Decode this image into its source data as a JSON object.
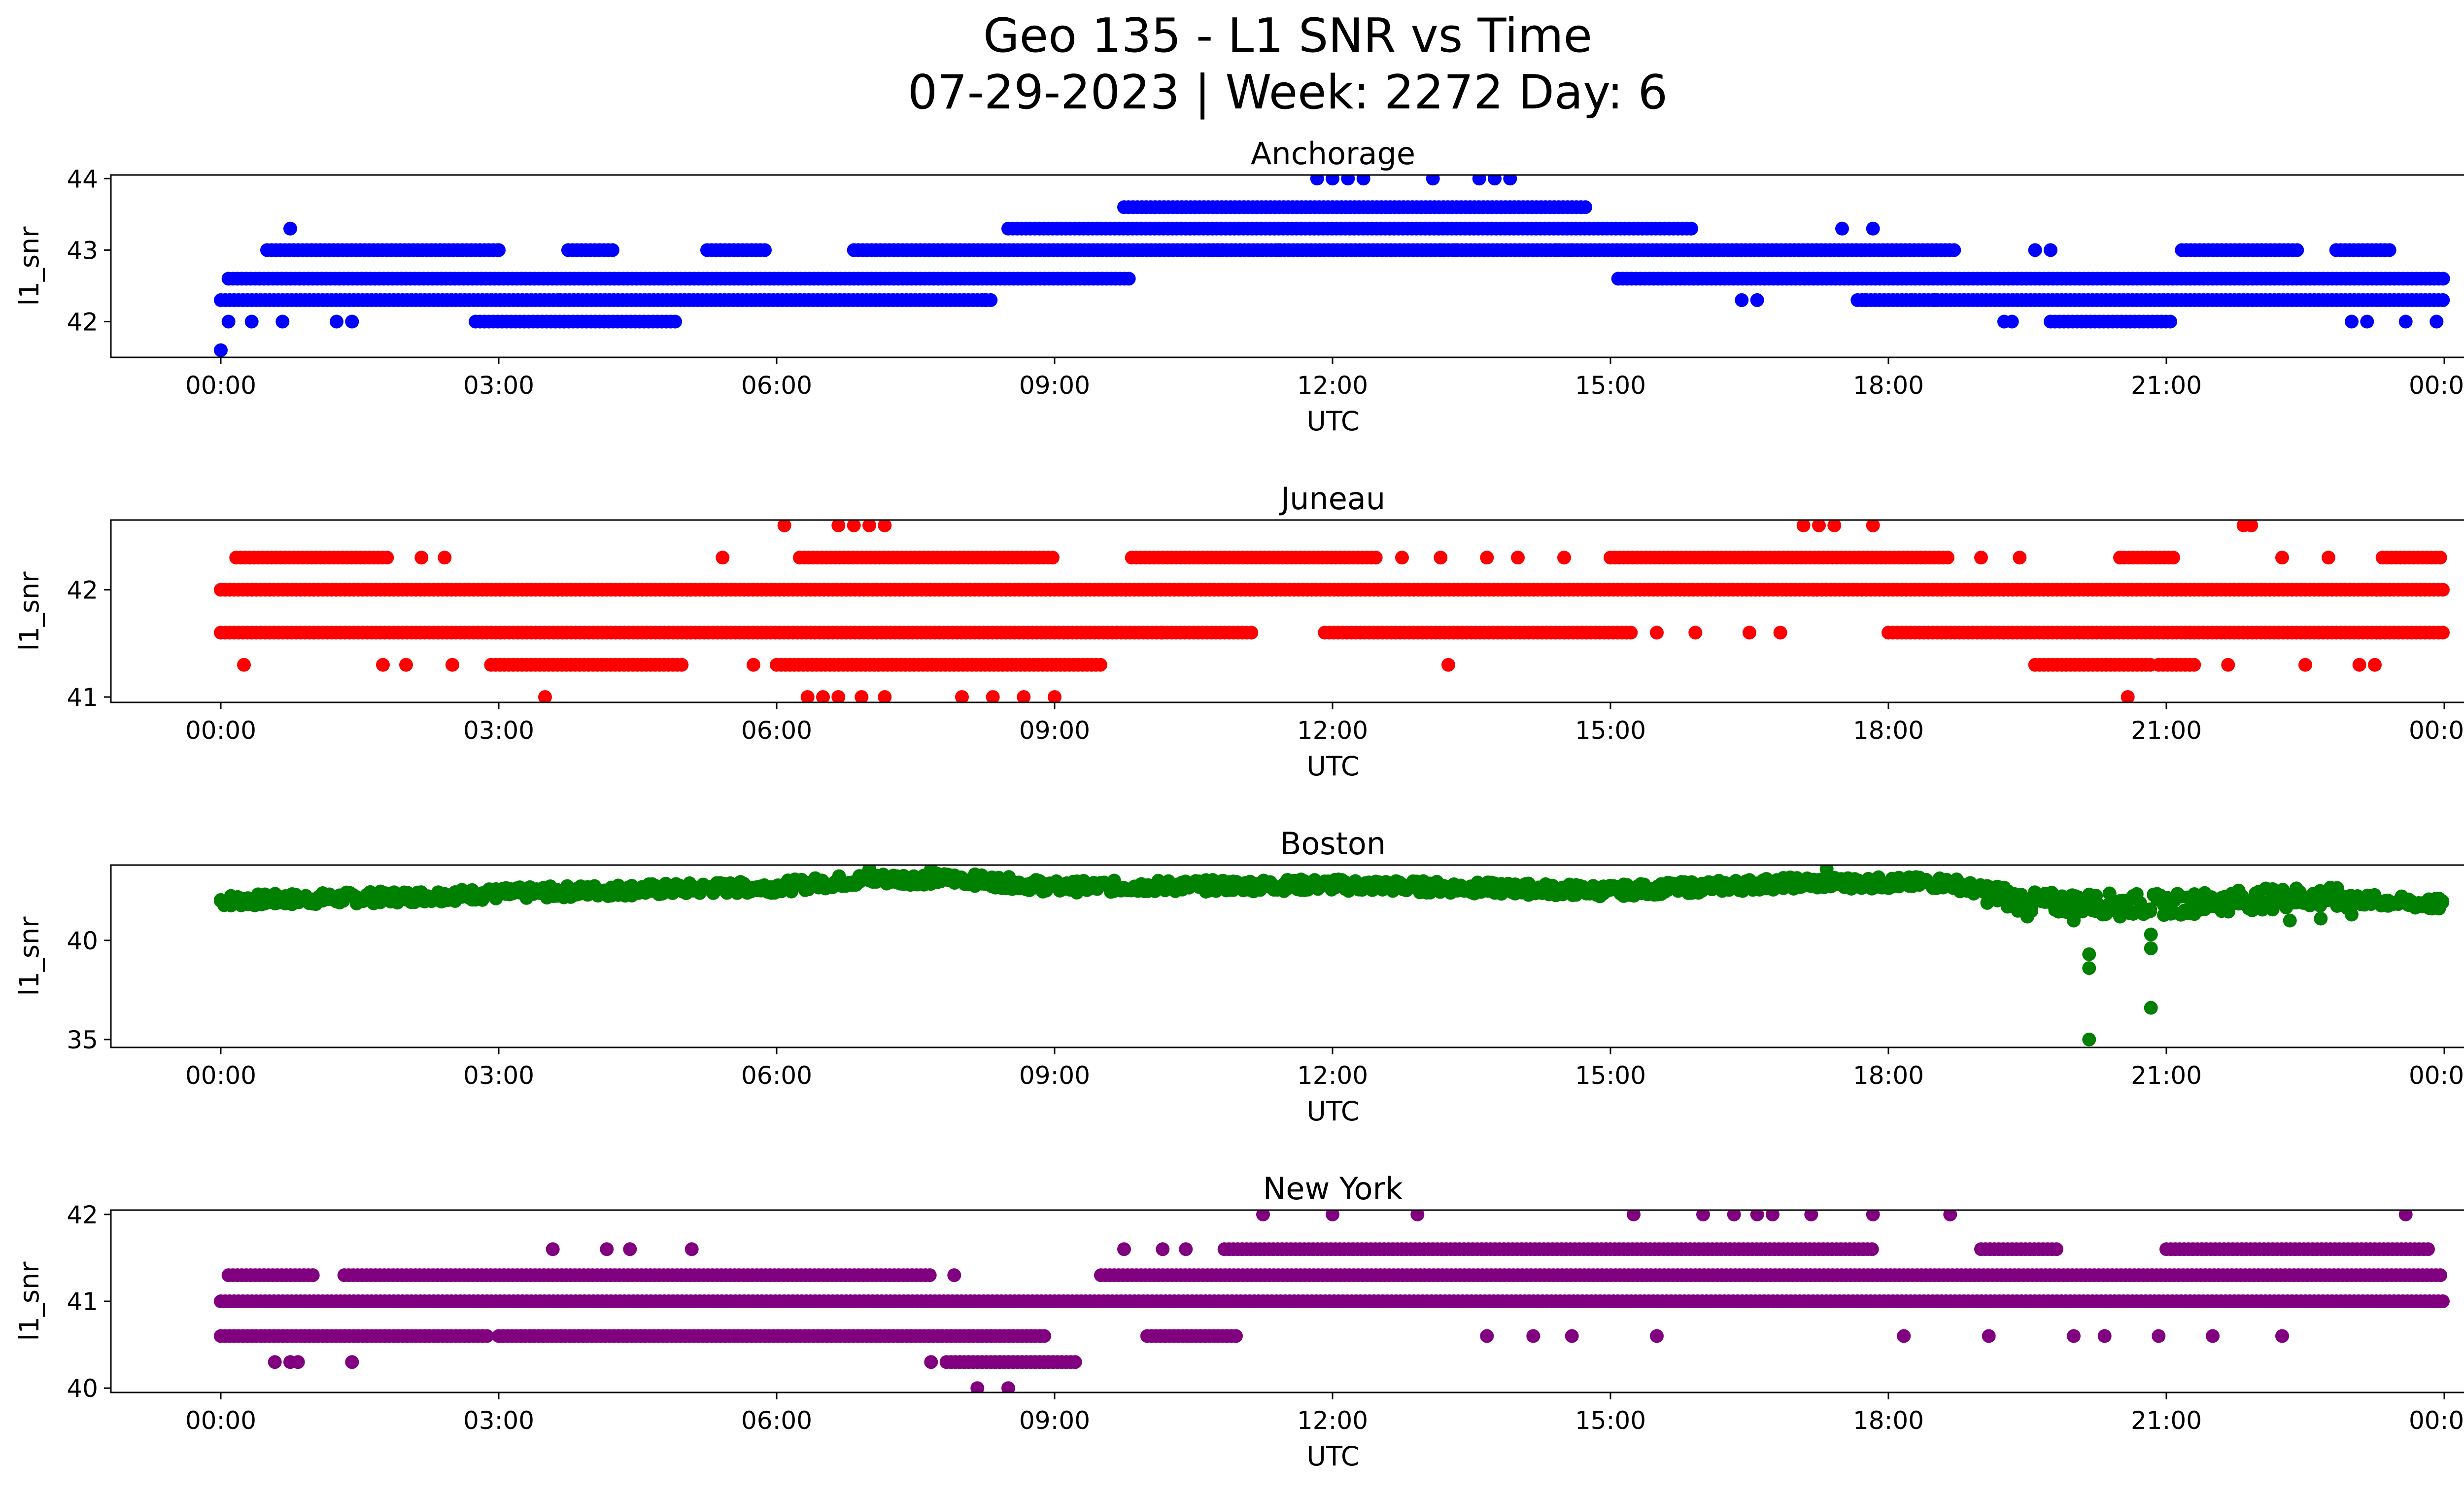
{
  "figure": {
    "title_line1": "Geo 135 - L1 SNR vs Time",
    "title_line2": "07-29-2023 | Week: 2272 Day: 6"
  },
  "chart_data": [
    {
      "type": "scatter",
      "title": "Anchorage",
      "xlabel": "UTC",
      "ylabel": "l1_snr",
      "color": "#0000ff",
      "xlim": [
        "2023-07-29T00:00",
        "2023-07-30T00:00"
      ],
      "ylim": [
        41.5,
        44.05
      ],
      "x_ticks": [
        "00:00",
        "03:00",
        "06:00",
        "09:00",
        "12:00",
        "15:00",
        "18:00",
        "21:00",
        "00:00"
      ],
      "y_ticks": [
        42,
        43,
        44
      ],
      "y_tick_labels": [
        "42",
        "43",
        "44"
      ],
      "bands": [
        {
          "value": 42.3,
          "ranges": [
            [
              "00:00",
              "03:40"
            ],
            [
              "03:40",
              "08:20"
            ],
            [
              "17:40",
              "24:00"
            ]
          ]
        },
        {
          "value": 42.6,
          "ranges": [
            [
              "00:05",
              "09:50"
            ],
            [
              "15:05",
              "24:00"
            ]
          ]
        },
        {
          "value": 43.0,
          "ranges": [
            [
              "00:30",
              "03:00"
            ],
            [
              "03:45",
              "04:15"
            ],
            [
              "05:15",
              "05:55"
            ],
            [
              "06:50",
              "10:50"
            ],
            [
              "10:40",
              "18:45"
            ],
            [
              "21:10",
              "22:25"
            ],
            [
              "22:50",
              "23:25"
            ]
          ]
        },
        {
          "value": 43.3,
          "ranges": [
            [
              "08:30",
              "15:55"
            ]
          ]
        },
        {
          "value": 43.6,
          "ranges": [
            [
              "09:45",
              "14:45"
            ]
          ]
        },
        {
          "value": 42.0,
          "ranges": [
            [
              "02:45",
              "04:55"
            ],
            [
              "19:45",
              "21:05"
            ]
          ]
        }
      ],
      "points": [
        {
          "x": "00:00",
          "y": 41.6
        },
        {
          "x": "00:05",
          "y": 42.0
        },
        {
          "x": "00:20",
          "y": 42.0
        },
        {
          "x": "00:40",
          "y": 42.0
        },
        {
          "x": "00:45",
          "y": 43.3
        },
        {
          "x": "01:15",
          "y": 42.0
        },
        {
          "x": "01:25",
          "y": 42.0
        },
        {
          "x": "03:00",
          "y": 43.0
        },
        {
          "x": "08:15",
          "y": 42.3
        },
        {
          "x": "11:50",
          "y": 44.0
        },
        {
          "x": "12:00",
          "y": 44.0
        },
        {
          "x": "12:10",
          "y": 44.0
        },
        {
          "x": "12:20",
          "y": 44.0
        },
        {
          "x": "13:05",
          "y": 44.0
        },
        {
          "x": "13:35",
          "y": 44.0
        },
        {
          "x": "13:45",
          "y": 44.0
        },
        {
          "x": "13:55",
          "y": 44.0
        },
        {
          "x": "11:25",
          "y": 43.0
        },
        {
          "x": "13:10",
          "y": 43.0
        },
        {
          "x": "13:20",
          "y": 43.0
        },
        {
          "x": "14:25",
          "y": 43.0
        },
        {
          "x": "14:35",
          "y": 43.0
        },
        {
          "x": "16:25",
          "y": 42.3
        },
        {
          "x": "16:35",
          "y": 42.3
        },
        {
          "x": "17:30",
          "y": 43.3
        },
        {
          "x": "17:50",
          "y": 43.3
        },
        {
          "x": "17:45",
          "y": 42.3
        },
        {
          "x": "18:15",
          "y": 42.3
        },
        {
          "x": "18:30",
          "y": 42.3
        },
        {
          "x": "19:15",
          "y": 42.0
        },
        {
          "x": "19:20",
          "y": 42.0
        },
        {
          "x": "19:35",
          "y": 43.0
        },
        {
          "x": "19:45",
          "y": 43.0
        },
        {
          "x": "23:00",
          "y": 42.0
        },
        {
          "x": "23:10",
          "y": 42.0
        },
        {
          "x": "23:35",
          "y": 42.0
        },
        {
          "x": "23:55",
          "y": 42.0
        }
      ]
    },
    {
      "type": "scatter",
      "title": "Juneau",
      "xlabel": "UTC",
      "ylabel": "l1_snr",
      "color": "#ff0000",
      "xlim": [
        "2023-07-29T00:00",
        "2023-07-30T00:00"
      ],
      "ylim": [
        40.95,
        42.65
      ],
      "x_ticks": [
        "00:00",
        "03:00",
        "06:00",
        "09:00",
        "12:00",
        "15:00",
        "18:00",
        "21:00",
        "00:00"
      ],
      "y_ticks": [
        41,
        42
      ],
      "y_tick_labels": [
        "41",
        "42"
      ],
      "bands": [
        {
          "value": 42.0,
          "ranges": [
            [
              "00:00",
              "24:00"
            ]
          ]
        },
        {
          "value": 41.6,
          "ranges": [
            [
              "00:00",
              "10:10"
            ],
            [
              "10:10",
              "11:10"
            ],
            [
              "11:55",
              "15:15"
            ],
            [
              "18:00",
              "24:00"
            ]
          ]
        },
        {
          "value": 42.3,
          "ranges": [
            [
              "00:10",
              "01:50"
            ],
            [
              "06:15",
              "09:00"
            ],
            [
              "09:50",
              "12:30"
            ],
            [
              "15:00",
              "18:40"
            ],
            [
              "20:30",
              "21:05"
            ],
            [
              "23:20",
              "24:00"
            ]
          ]
        },
        {
          "value": 41.3,
          "ranges": [
            [
              "02:55",
              "05:00"
            ],
            [
              "06:00",
              "09:30"
            ],
            [
              "19:35",
              "20:50"
            ],
            [
              "20:55",
              "21:20"
            ]
          ]
        }
      ],
      "points": [
        {
          "x": "00:15",
          "y": 41.3
        },
        {
          "x": "01:45",
          "y": 41.3
        },
        {
          "x": "02:00",
          "y": 41.3
        },
        {
          "x": "02:30",
          "y": 41.3
        },
        {
          "x": "02:10",
          "y": 42.3
        },
        {
          "x": "02:25",
          "y": 42.3
        },
        {
          "x": "05:25",
          "y": 42.3
        },
        {
          "x": "05:45",
          "y": 41.3
        },
        {
          "x": "03:30",
          "y": 41.0
        },
        {
          "x": "06:05",
          "y": 42.6
        },
        {
          "x": "06:40",
          "y": 42.6
        },
        {
          "x": "06:50",
          "y": 42.6
        },
        {
          "x": "07:00",
          "y": 42.6
        },
        {
          "x": "07:10",
          "y": 42.6
        },
        {
          "x": "06:20",
          "y": 41.0
        },
        {
          "x": "06:30",
          "y": 41.0
        },
        {
          "x": "06:40",
          "y": 41.0
        },
        {
          "x": "06:55",
          "y": 41.0
        },
        {
          "x": "07:10",
          "y": 41.0
        },
        {
          "x": "08:00",
          "y": 41.0
        },
        {
          "x": "08:20",
          "y": 41.0
        },
        {
          "x": "08:40",
          "y": 41.0
        },
        {
          "x": "09:00",
          "y": 41.0
        },
        {
          "x": "13:15",
          "y": 41.3
        },
        {
          "x": "12:45",
          "y": 42.3
        },
        {
          "x": "13:10",
          "y": 42.3
        },
        {
          "x": "13:40",
          "y": 42.3
        },
        {
          "x": "14:00",
          "y": 42.3
        },
        {
          "x": "14:30",
          "y": 42.3
        },
        {
          "x": "15:30",
          "y": 41.6
        },
        {
          "x": "15:55",
          "y": 41.6
        },
        {
          "x": "16:30",
          "y": 41.6
        },
        {
          "x": "16:50",
          "y": 41.6
        },
        {
          "x": "17:05",
          "y": 42.6
        },
        {
          "x": "17:15",
          "y": 42.6
        },
        {
          "x": "17:25",
          "y": 42.6
        },
        {
          "x": "17:50",
          "y": 42.6
        },
        {
          "x": "19:00",
          "y": 42.3
        },
        {
          "x": "19:25",
          "y": 42.3
        },
        {
          "x": "20:35",
          "y": 41.0
        },
        {
          "x": "21:40",
          "y": 41.3
        },
        {
          "x": "22:15",
          "y": 42.3
        },
        {
          "x": "21:50",
          "y": 42.6
        },
        {
          "x": "21:55",
          "y": 42.6
        },
        {
          "x": "22:30",
          "y": 41.3
        },
        {
          "x": "22:45",
          "y": 42.3
        },
        {
          "x": "23:05",
          "y": 41.3
        },
        {
          "x": "23:15",
          "y": 41.3
        }
      ]
    },
    {
      "type": "scatter",
      "title": "Boston",
      "xlabel": "UTC",
      "ylabel": "l1_snr",
      "color": "#008000",
      "xlim": [
        "2023-07-29T00:00",
        "2023-07-30T00:00"
      ],
      "ylim": [
        34.6,
        43.8
      ],
      "x_ticks": [
        "00:00",
        "03:00",
        "06:00",
        "09:00",
        "12:00",
        "15:00",
        "18:00",
        "21:00",
        "00:00"
      ],
      "y_ticks": [
        35,
        40
      ],
      "y_tick_labels": [
        "35",
        "40"
      ],
      "trend": [
        {
          "x": "00:00",
          "y": 42.0
        },
        {
          "x": "02:00",
          "y": 42.2
        },
        {
          "x": "04:00",
          "y": 42.5
        },
        {
          "x": "06:00",
          "y": 42.7
        },
        {
          "x": "07:00",
          "y": 43.1
        },
        {
          "x": "08:00",
          "y": 43.1
        },
        {
          "x": "09:00",
          "y": 42.7
        },
        {
          "x": "12:00",
          "y": 42.8
        },
        {
          "x": "15:00",
          "y": 42.5
        },
        {
          "x": "17:00",
          "y": 42.9
        },
        {
          "x": "18:40",
          "y": 42.9
        },
        {
          "x": "19:30",
          "y": 41.9
        },
        {
          "x": "21:00",
          "y": 41.8
        },
        {
          "x": "22:30",
          "y": 42.2
        },
        {
          "x": "24:00",
          "y": 41.8
        }
      ],
      "points": [
        {
          "x": "20:10",
          "y": 35.0
        },
        {
          "x": "20:10",
          "y": 38.6
        },
        {
          "x": "20:10",
          "y": 39.3
        },
        {
          "x": "20:50",
          "y": 36.6
        },
        {
          "x": "20:50",
          "y": 39.6
        },
        {
          "x": "20:50",
          "y": 40.3
        },
        {
          "x": "19:30",
          "y": 41.2
        },
        {
          "x": "20:00",
          "y": 41.0
        },
        {
          "x": "20:30",
          "y": 41.2
        },
        {
          "x": "22:20",
          "y": 41.0
        },
        {
          "x": "22:40",
          "y": 41.1
        },
        {
          "x": "23:00",
          "y": 41.3
        },
        {
          "x": "07:00",
          "y": 43.6
        },
        {
          "x": "07:40",
          "y": 43.6
        },
        {
          "x": "17:20",
          "y": 43.6
        }
      ]
    },
    {
      "type": "scatter",
      "title": "New York",
      "xlabel": "UTC",
      "ylabel": "l1_snr",
      "color": "#800080",
      "xlim": [
        "2023-07-29T00:00",
        "2023-07-30T00:00"
      ],
      "ylim": [
        39.95,
        42.05
      ],
      "x_ticks": [
        "00:00",
        "03:00",
        "06:00",
        "09:00",
        "12:00",
        "15:00",
        "18:00",
        "21:00",
        "00:00"
      ],
      "y_ticks": [
        40,
        41,
        42
      ],
      "y_tick_labels": [
        "40",
        "41",
        "42"
      ],
      "bands": [
        {
          "value": 41.0,
          "ranges": [
            [
              "00:00",
              "24:00"
            ]
          ]
        },
        {
          "value": 40.6,
          "ranges": [
            [
              "00:00",
              "02:55"
            ],
            [
              "03:00",
              "08:55"
            ],
            [
              "10:00",
              "11:00"
            ]
          ]
        },
        {
          "value": 41.3,
          "ranges": [
            [
              "00:05",
              "01:00"
            ],
            [
              "01:20",
              "07:40"
            ],
            [
              "09:30",
              "24:00"
            ]
          ]
        },
        {
          "value": 41.6,
          "ranges": [
            [
              "10:50",
              "17:50"
            ],
            [
              "19:00",
              "19:50"
            ],
            [
              "21:00",
              "23:50"
            ]
          ]
        },
        {
          "value": 40.3,
          "ranges": [
            [
              "07:50",
              "09:15"
            ]
          ]
        }
      ],
      "points": [
        {
          "x": "00:35",
          "y": 40.3
        },
        {
          "x": "00:45",
          "y": 40.3
        },
        {
          "x": "00:50",
          "y": 40.3
        },
        {
          "x": "01:25",
          "y": 40.3
        },
        {
          "x": "07:40",
          "y": 40.3
        },
        {
          "x": "07:55",
          "y": 41.3
        },
        {
          "x": "08:10",
          "y": 40.0
        },
        {
          "x": "08:30",
          "y": 40.0
        },
        {
          "x": "03:35",
          "y": 41.6
        },
        {
          "x": "04:10",
          "y": 41.6
        },
        {
          "x": "04:25",
          "y": 41.6
        },
        {
          "x": "05:05",
          "y": 41.6
        },
        {
          "x": "09:45",
          "y": 41.6
        },
        {
          "x": "10:10",
          "y": 41.6
        },
        {
          "x": "10:25",
          "y": 41.6
        },
        {
          "x": "11:15",
          "y": 42.0
        },
        {
          "x": "12:00",
          "y": 42.0
        },
        {
          "x": "12:55",
          "y": 42.0
        },
        {
          "x": "15:15",
          "y": 42.0
        },
        {
          "x": "16:00",
          "y": 42.0
        },
        {
          "x": "16:20",
          "y": 42.0
        },
        {
          "x": "16:35",
          "y": 42.0
        },
        {
          "x": "16:45",
          "y": 42.0
        },
        {
          "x": "17:10",
          "y": 42.0
        },
        {
          "x": "17:50",
          "y": 42.0
        },
        {
          "x": "18:40",
          "y": 42.0
        },
        {
          "x": "23:35",
          "y": 42.0
        },
        {
          "x": "13:40",
          "y": 40.6
        },
        {
          "x": "14:10",
          "y": 40.6
        },
        {
          "x": "14:35",
          "y": 40.6
        },
        {
          "x": "15:30",
          "y": 40.6
        },
        {
          "x": "18:10",
          "y": 40.6
        },
        {
          "x": "19:05",
          "y": 40.6
        },
        {
          "x": "20:00",
          "y": 40.6
        },
        {
          "x": "20:20",
          "y": 40.6
        },
        {
          "x": "20:55",
          "y": 40.6
        },
        {
          "x": "21:30",
          "y": 40.6
        },
        {
          "x": "22:15",
          "y": 40.6
        }
      ]
    }
  ]
}
